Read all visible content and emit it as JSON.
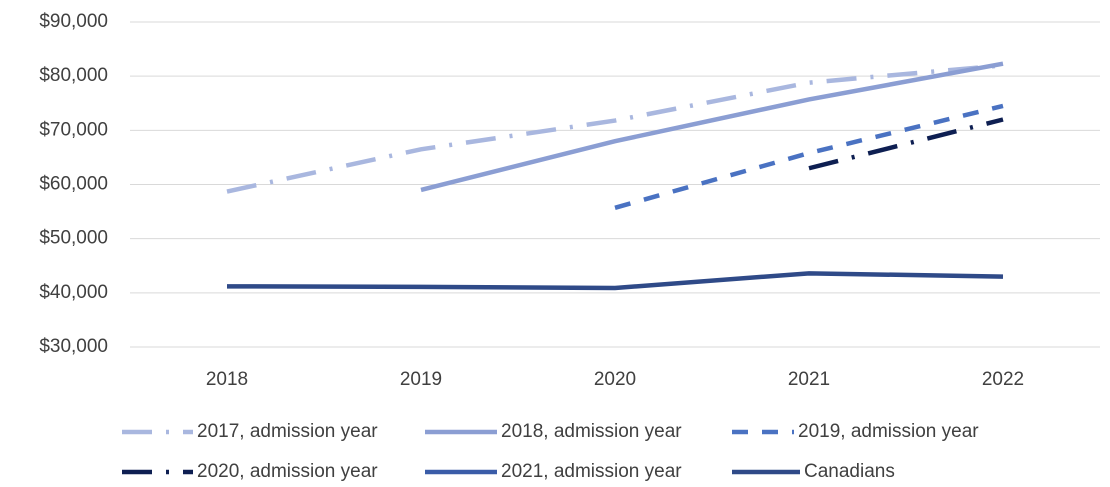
{
  "chart_data": {
    "type": "line",
    "categories": [
      "2018",
      "2019",
      "2020",
      "2021",
      "2022"
    ],
    "ylim": [
      30000,
      90000
    ],
    "yticks": [
      {
        "value": 30000,
        "label": "$30,000"
      },
      {
        "value": 40000,
        "label": "$40,000"
      },
      {
        "value": 50000,
        "label": "$50,000"
      },
      {
        "value": 60000,
        "label": "$60,000"
      },
      {
        "value": 70000,
        "label": "$70,000"
      },
      {
        "value": 80000,
        "label": "$80,000"
      },
      {
        "value": 90000,
        "label": "$90,000"
      }
    ],
    "grid": true,
    "legend": "bottom",
    "series": [
      {
        "name": "2017, admission year",
        "color": "#a9b7df",
        "dash": "dash-dot",
        "values": [
          58700,
          66500,
          71800,
          78800,
          82000
        ]
      },
      {
        "name": "2018, admission year",
        "color": "#8b9ed3",
        "dash": "solid",
        "values": [
          null,
          59000,
          68000,
          75700,
          82300
        ]
      },
      {
        "name": "2019, admission year",
        "color": "#4a72c2",
        "dash": "dash",
        "values": [
          null,
          null,
          55700,
          65800,
          74500
        ]
      },
      {
        "name": "2020, admission year",
        "color": "#0e1f52",
        "dash": "dash-dot",
        "values": [
          null,
          null,
          null,
          63000,
          72000
        ]
      },
      {
        "name": "2021, admission year",
        "color": "#3a5ca8",
        "dash": "solid",
        "values": [
          null,
          null,
          null,
          null,
          null
        ]
      },
      {
        "name": "Canadians",
        "color": "#2f4a88",
        "dash": "solid",
        "values": [
          41200,
          41100,
          40900,
          43600,
          43000
        ]
      }
    ]
  }
}
